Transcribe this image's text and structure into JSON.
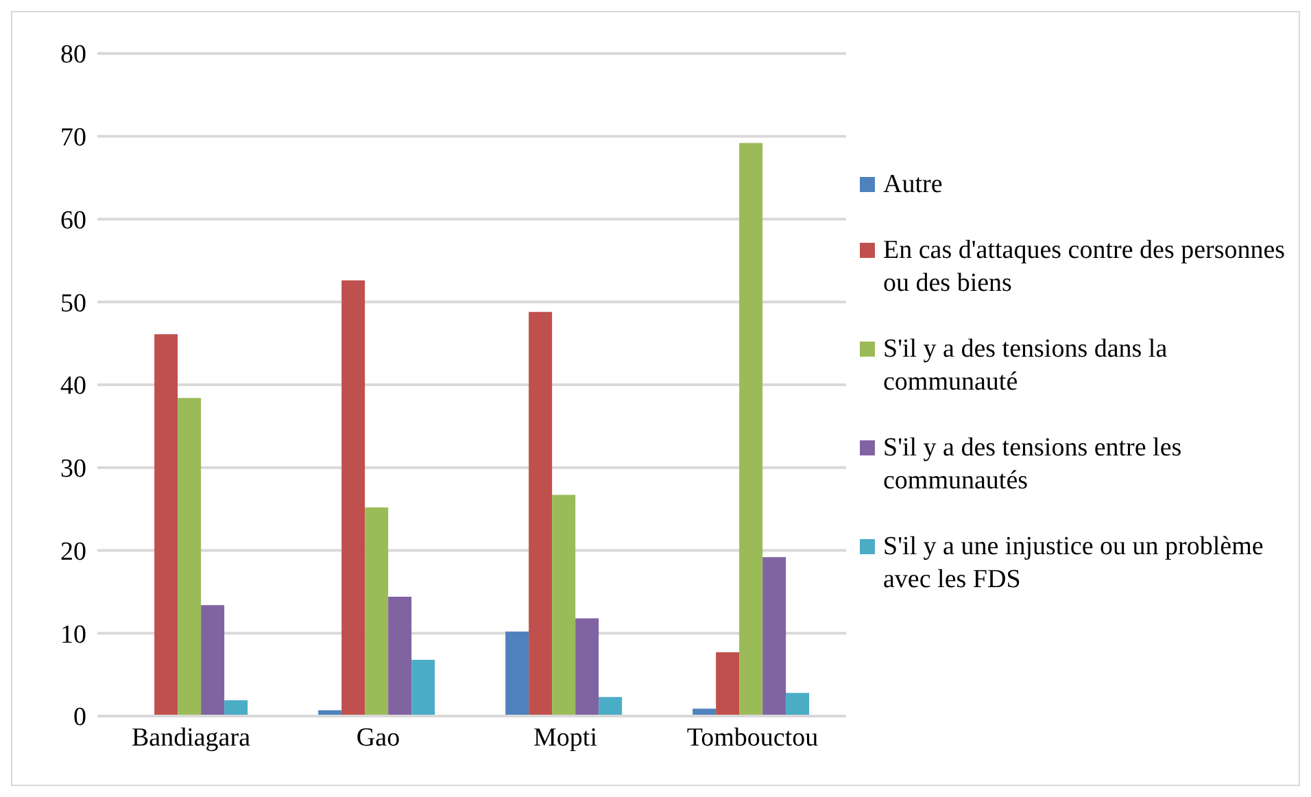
{
  "chart_data": {
    "type": "bar",
    "categories": [
      "Bandiagara",
      "Gao",
      "Mopti",
      "Tombouctou"
    ],
    "series": [
      {
        "name": "Autre",
        "color": "#4f81bd",
        "values": [
          0,
          0.7,
          10.2,
          0.9
        ]
      },
      {
        "name": "En cas d'attaques contre des personnes ou des biens",
        "color": "#c0504d",
        "values": [
          46.1,
          52.6,
          48.8,
          7.7
        ]
      },
      {
        "name": "S'il y a des tensions dans la communauté",
        "color": "#9bbb59",
        "values": [
          38.4,
          25.2,
          26.7,
          69.2
        ]
      },
      {
        "name": "S'il y a des tensions entre les communautés",
        "color": "#8064a2",
        "values": [
          13.4,
          14.4,
          11.8,
          19.2
        ]
      },
      {
        "name": "S'il y a une injustice ou un problème avec les FDS",
        "color": "#4bacc6",
        "values": [
          1.9,
          6.8,
          2.3,
          2.8
        ]
      }
    ],
    "ylim": [
      0,
      80
    ],
    "yticks": [
      0,
      10,
      20,
      30,
      40,
      50,
      60,
      70,
      80
    ],
    "grid": "y",
    "legend": "right"
  }
}
